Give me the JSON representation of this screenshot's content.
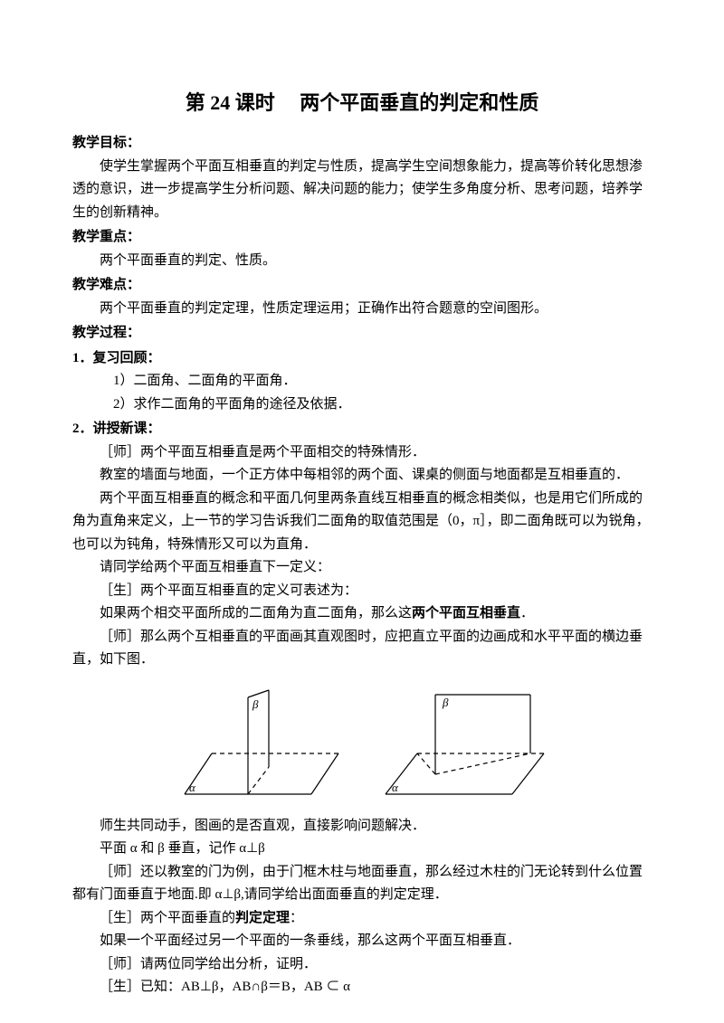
{
  "title": "第 24 课时　 两个平面垂直的判定和性质",
  "goal_header": "教学目标：",
  "goal_text": "使学生掌握两个平面互相垂直的判定与性质，提高学生空间想象能力，提高等价转化思想渗透的意识，进一步提高学生分析问题、解决问题的能力；使学生多角度分析、思考问题，培养学生的创新精神。",
  "focus_header": "教学重点：",
  "focus_text": "两个平面垂直的判定、性质。",
  "difficulty_header": "教学难点：",
  "difficulty_text": "两个平面垂直的判定定理，性质定理运用；正确作出符合题意的空间图形。",
  "process_header": "教学过程：",
  "review_header": "1．复习回顾：",
  "review_1": "1）二面角、二面角的平面角．",
  "review_2": "2）求作二面角的平面角的途径及依据．",
  "newlesson_header": "2．讲授新课：",
  "p1": "［师］两个平面互相垂直是两个平面相交的特殊情形．",
  "p2": "教室的墙面与地面，一个正方体中每相邻的两个面、课桌的侧面与地面都是互相垂直的．",
  "p3": "两个平面互相垂直的概念和平面几何里两条直线互相垂直的概念相类似，也是用它们所成的角为直角来定义，上一节的学习告诉我们二面角的取值范围是（0，π］，即二面角既可以为锐角，也可以为钝角，特殊情形又可以为直角．",
  "p4": "请同学给两个平面互相垂直下一定义：",
  "p5": "［生］两个平面互相垂直的定义可表述为：",
  "p6a": "如果两个相交平面所成的二面角为直二面角，那么这",
  "p6b": "两个平面互相垂直",
  "p6c": "．",
  "p7": "［师］那么两个互相垂直的平面画其直观图时，应把直立平面的边画成和水平平面的横边垂直，如下图．",
  "p8": "师生共同动手，图画的是否直观，直接影响问题解决．",
  "p9": "平面 α 和 β 垂直，记作 α⊥β",
  "p10": "［师］还以教室的门为例，由于门框木柱与地面垂直，那么经过木柱的门无论转到什么位置都有门面垂直于地面.即 α⊥β,请同学给出面面垂直的判定定理．",
  "p11a": "［生］两个平面垂直的",
  "p11b": "判定定理",
  "p11c": "：",
  "p12": "如果一个平面经过另一个平面的一条垂线，那么这两个平面互相垂直．",
  "p13": "［师］请两位同学给出分析，证明．",
  "p14": "［生］已知：AB⊥β，AB∩β＝B，AB ⊂ α",
  "fig": {
    "stroke": "#000000",
    "stroke_width": 1.2,
    "dash": "5,4",
    "label_alpha": "α",
    "label_beta": "β",
    "font_size": 13,
    "font_style": "italic"
  }
}
